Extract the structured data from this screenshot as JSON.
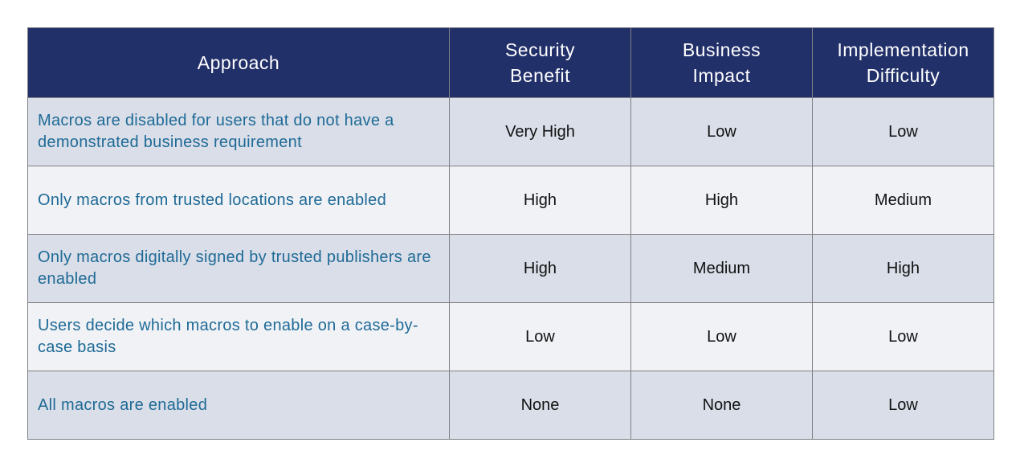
{
  "table": {
    "header": [
      "Approach",
      "Security Benefit",
      "Business Impact",
      "Implementation Difficulty"
    ],
    "rows": [
      [
        "Macros are disabled for users that do not have a demonstrated business requirement",
        "Very High",
        "Low",
        "Low"
      ],
      [
        "Only macros from trusted locations are enabled",
        "High",
        "High",
        "Medium"
      ],
      [
        "Only macros digitally signed by trusted publishers are enabled",
        "High",
        "Medium",
        "High"
      ],
      [
        "Users decide which macros to enable on a case-by-case basis",
        "Low",
        "Low",
        "Low"
      ],
      [
        "All macros are enabled",
        "None",
        "None",
        "Low"
      ]
    ]
  }
}
